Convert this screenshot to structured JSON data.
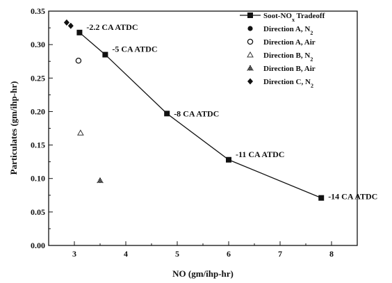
{
  "chart_data": {
    "type": "scatter",
    "xlabel": "NO (gm/ihp-hr)",
    "ylabel": "Particulates (gm/ihp-hr)",
    "xlim": [
      2.5,
      8.5
    ],
    "ylim": [
      0,
      0.35
    ],
    "xticks": [
      "3",
      "4",
      "5",
      "6",
      "7",
      "8"
    ],
    "yticks": [
      "0.00",
      "0.05",
      "0.10",
      "0.15",
      "0.20",
      "0.25",
      "0.30",
      "0.35"
    ],
    "legend_position": "top-right",
    "series": [
      {
        "name": "Soot-NO_x Tradeoff",
        "marker": "filled-square",
        "line": true,
        "color": "#111111",
        "points": [
          {
            "x": 3.1,
            "y": 0.318,
            "label": "-2.2 CA ATDC"
          },
          {
            "x": 3.6,
            "y": 0.285,
            "label": "-5 CA ATDC"
          },
          {
            "x": 4.8,
            "y": 0.197,
            "label": "-8 CA ATDC"
          },
          {
            "x": 6.0,
            "y": 0.128,
            "label": "-11 CA ATDC"
          },
          {
            "x": 7.8,
            "y": 0.071,
            "label": "-14 CA ATDC"
          }
        ]
      },
      {
        "name": "Direction A, N_2",
        "marker": "filled-circle",
        "line": false,
        "color": "#111111",
        "points": []
      },
      {
        "name": "Direction A, Air",
        "marker": "open-circle",
        "line": false,
        "color": "#111111",
        "points": [
          {
            "x": 3.08,
            "y": 0.276
          }
        ]
      },
      {
        "name": "Direction B, N_2",
        "marker": "open-triangle",
        "line": false,
        "color": "#111111",
        "points": [
          {
            "x": 3.12,
            "y": 0.168
          }
        ]
      },
      {
        "name": "Direction B, Air",
        "marker": "dotted-triangle",
        "line": false,
        "color": "#111111",
        "points": [
          {
            "x": 3.5,
            "y": 0.097
          }
        ]
      },
      {
        "name": "Direction C, N_2",
        "marker": "filled-diamond",
        "line": false,
        "color": "#111111",
        "points": [
          {
            "x": 2.85,
            "y": 0.333
          },
          {
            "x": 2.93,
            "y": 0.328
          }
        ]
      }
    ]
  }
}
